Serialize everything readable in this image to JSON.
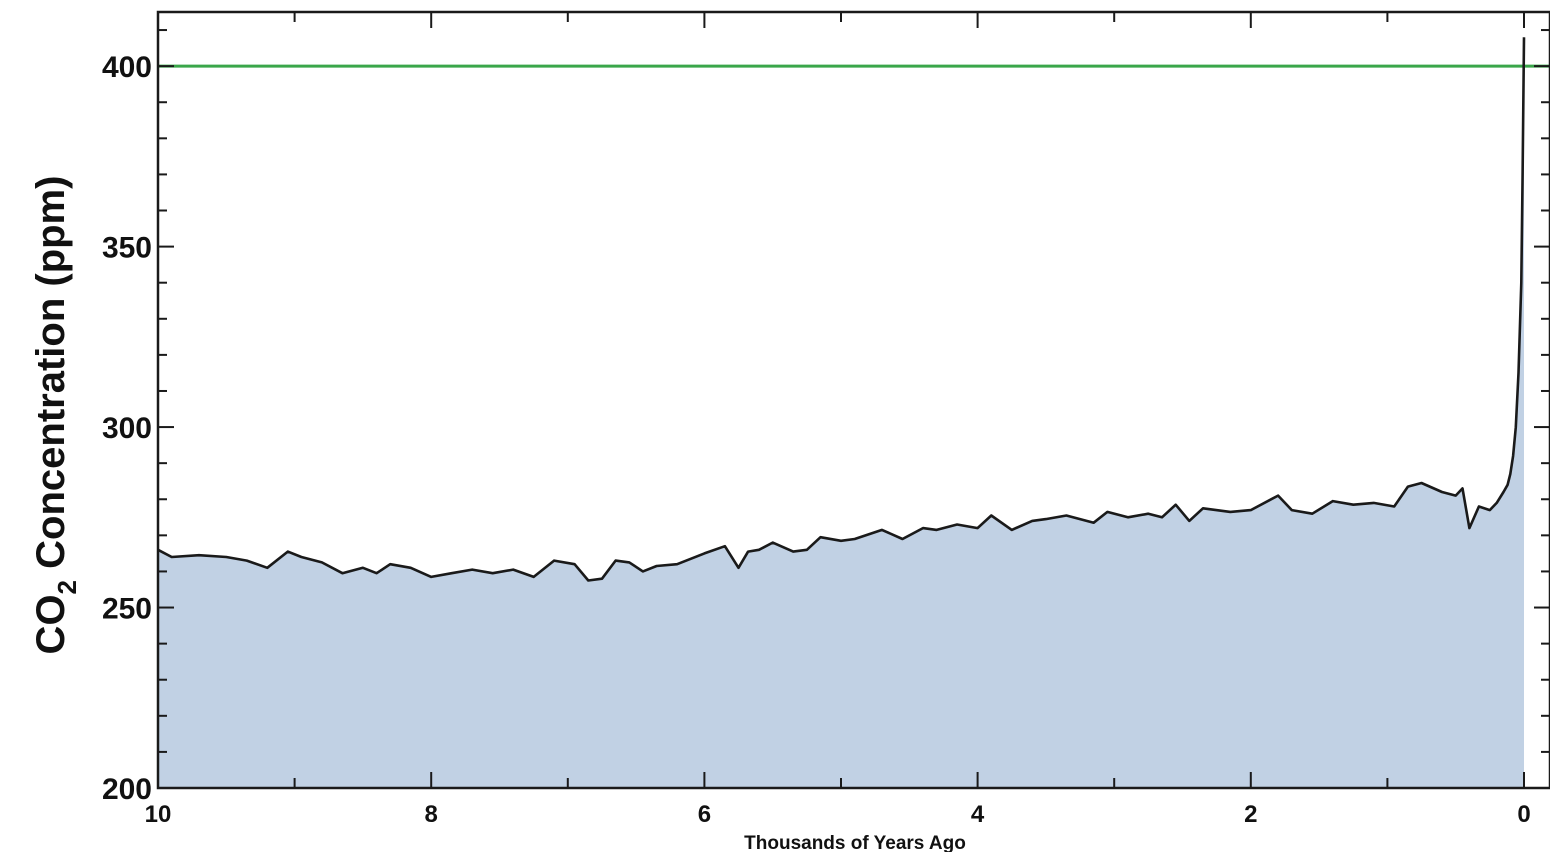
{
  "chart_data": {
    "type": "area",
    "xlabel": "Thousands of Years Ago",
    "ylabel_prefix": "CO",
    "ylabel_subscript": "2",
    "ylabel_suffix": " Concentration (ppm)",
    "xlim": [
      10,
      0
    ],
    "ylim": [
      200,
      415
    ],
    "x_ticks": [
      10,
      8,
      6,
      4,
      2,
      0
    ],
    "x_tick_labels": [
      "10",
      "8",
      "6",
      "4",
      "2",
      "0"
    ],
    "y_ticks": [
      200,
      250,
      300,
      350,
      400
    ],
    "y_tick_labels": [
      "200",
      "250",
      "300",
      "350",
      "400"
    ],
    "grid": false,
    "reference_line": {
      "value": 400,
      "color": "#3aa64a"
    },
    "fill_color": "#c1d1e4",
    "line_color": "#1a1a1a",
    "series": [
      {
        "x": [
          10,
          9.9,
          9.7,
          9.5,
          9.35,
          9.2,
          9.05,
          8.95,
          8.8,
          8.65,
          8.5,
          8.4,
          8.3,
          8.15,
          8.0,
          7.85,
          7.7,
          7.55,
          7.4,
          7.25,
          7.1,
          6.95,
          6.85,
          6.75,
          6.65,
          6.55,
          6.45,
          6.35,
          6.2,
          6.0,
          5.85,
          5.75,
          5.68,
          5.6,
          5.5,
          5.35,
          5.25,
          5.15,
          5.0,
          4.9,
          4.7,
          4.55,
          4.4,
          4.3,
          4.15,
          4.0,
          3.9,
          3.75,
          3.6,
          3.5,
          3.35,
          3.15,
          3.05,
          2.9,
          2.75,
          2.65,
          2.55,
          2.45,
          2.35,
          2.15,
          2.0,
          1.8,
          1.7,
          1.55,
          1.4,
          1.25,
          1.1,
          0.95,
          0.85,
          0.75,
          0.6,
          0.5,
          0.45,
          0.4,
          0.33,
          0.25,
          0.2,
          0.15,
          0.12,
          0.1,
          0.08,
          0.06,
          0.04,
          0.02,
          0.01,
          0.0
        ],
        "y": [
          266,
          264,
          264.5,
          264,
          263,
          261,
          265.5,
          264,
          262.5,
          259.5,
          261,
          259.5,
          262,
          261,
          258.5,
          259.5,
          260.5,
          259.5,
          260.5,
          258.5,
          263,
          262,
          257.5,
          258,
          263,
          262.5,
          260,
          261.5,
          262,
          265,
          267,
          261,
          265.5,
          266,
          268,
          265.5,
          266,
          269.5,
          268.5,
          269,
          271.5,
          269,
          272,
          271.5,
          273,
          272,
          275.5,
          271.5,
          274,
          274.5,
          275.5,
          273.5,
          276.5,
          275,
          276,
          275,
          278.5,
          274,
          277.5,
          276.5,
          277,
          281,
          277,
          276,
          279.5,
          278.5,
          279,
          278,
          283.5,
          284.5,
          282,
          281,
          283,
          272,
          278,
          277,
          279,
          282,
          284,
          287,
          292,
          300,
          315,
          340,
          370,
          408
        ]
      }
    ]
  }
}
